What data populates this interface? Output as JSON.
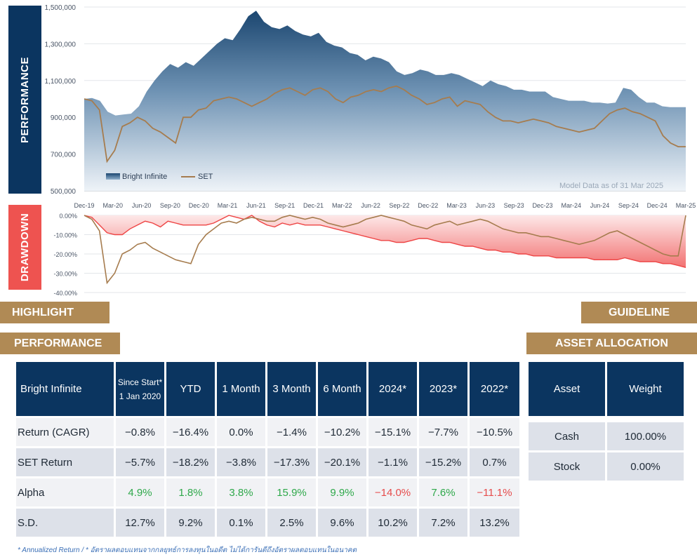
{
  "side_labels": {
    "performance": "PERFORMANCE",
    "drawdown": "DRAWDOWN"
  },
  "chart_data": [
    {
      "type": "area",
      "title": "",
      "y_ticks": [
        "1,500,000",
        "1,300,000",
        "1,100,000",
        "900,000",
        "700,000",
        "500,000"
      ],
      "ylim": [
        500000,
        1500000
      ],
      "x_ticks": [
        "Dec-19",
        "Mar-20",
        "Jun-20",
        "Sep-20",
        "Dec-20",
        "Mar-21",
        "Jun-21",
        "Sep-21",
        "Dec-21",
        "Mar-22",
        "Jun-22",
        "Sep-22",
        "Dec-22",
        "Mar-23",
        "Jun-23",
        "Sep-23",
        "Dec-23",
        "Mar-24",
        "Jun-24",
        "Sep-24",
        "Dec-24",
        "Mar-25"
      ],
      "legend": [
        "Bright Infinite",
        "SET"
      ],
      "annotation": "Model Data as of 31 Mar 2025",
      "series": [
        {
          "name": "Bright Infinite",
          "color": "#1b4670",
          "values": [
            1000000,
            1005000,
            990000,
            930000,
            910000,
            915000,
            920000,
            960000,
            1040000,
            1100000,
            1150000,
            1190000,
            1170000,
            1200000,
            1180000,
            1220000,
            1260000,
            1300000,
            1330000,
            1320000,
            1380000,
            1450000,
            1480000,
            1420000,
            1390000,
            1380000,
            1400000,
            1370000,
            1350000,
            1340000,
            1360000,
            1310000,
            1290000,
            1280000,
            1250000,
            1240000,
            1210000,
            1230000,
            1220000,
            1200000,
            1150000,
            1130000,
            1140000,
            1160000,
            1150000,
            1130000,
            1130000,
            1140000,
            1130000,
            1110000,
            1090000,
            1070000,
            1100000,
            1080000,
            1070000,
            1050000,
            1050000,
            1040000,
            1040000,
            1040000,
            1010000,
            1000000,
            990000,
            990000,
            990000,
            980000,
            980000,
            975000,
            980000,
            1060000,
            1050000,
            1010000,
            980000,
            980000,
            960000,
            955000,
            955000,
            955000
          ]
        },
        {
          "name": "SET",
          "color": "#a67c4e",
          "values": [
            1000000,
            990000,
            940000,
            660000,
            720000,
            850000,
            870000,
            900000,
            880000,
            840000,
            820000,
            790000,
            760000,
            900000,
            900000,
            940000,
            950000,
            990000,
            1000000,
            1010000,
            1000000,
            980000,
            960000,
            980000,
            1000000,
            1030000,
            1050000,
            1060000,
            1040000,
            1020000,
            1050000,
            1060000,
            1040000,
            1000000,
            980000,
            1010000,
            1020000,
            1040000,
            1050000,
            1040000,
            1060000,
            1070000,
            1050000,
            1020000,
            1000000,
            970000,
            980000,
            1000000,
            1010000,
            960000,
            990000,
            980000,
            970000,
            930000,
            900000,
            880000,
            880000,
            870000,
            880000,
            890000,
            880000,
            870000,
            850000,
            840000,
            830000,
            820000,
            830000,
            840000,
            880000,
            920000,
            940000,
            950000,
            930000,
            920000,
            900000,
            880000,
            800000,
            760000,
            740000,
            740000
          ]
        }
      ]
    },
    {
      "type": "area",
      "title": "",
      "y_ticks": [
        "0.00%",
        "-10.00%",
        "-20.00%",
        "-30.00%",
        "-40.00%"
      ],
      "ylim": [
        -40,
        0
      ],
      "series": [
        {
          "name": "Bright Infinite",
          "color": "#ee4444",
          "values": [
            0,
            -1,
            -5,
            -9,
            -10,
            -10,
            -7,
            -5,
            -3,
            -4,
            -6,
            -3,
            -4,
            -5,
            -5,
            -5,
            -5,
            -4,
            -2,
            0,
            -1,
            -2,
            0,
            -3,
            -5,
            -6,
            -4,
            -5,
            -4,
            -5,
            -5,
            -5,
            -6,
            -7,
            -8,
            -9,
            -10,
            -11,
            -12,
            -13,
            -13,
            -14,
            -14,
            -13,
            -12,
            -12,
            -13,
            -14,
            -14,
            -15,
            -16,
            -16,
            -17,
            -18,
            -18,
            -19,
            -19,
            -20,
            -20,
            -21,
            -21,
            -21,
            -22,
            -22,
            -22,
            -22,
            -22,
            -23,
            -23,
            -23,
            -23,
            -22,
            -23,
            -24,
            -24,
            -24,
            -25,
            -25,
            -26,
            -27
          ]
        },
        {
          "name": "SET",
          "color": "#a67c4e",
          "values": [
            0,
            -2,
            -8,
            -35,
            -30,
            -20,
            -18,
            -15,
            -14,
            -17,
            -19,
            -21,
            -23,
            -24,
            -25,
            -15,
            -10,
            -7,
            -4,
            -3,
            -4,
            -2,
            -1,
            -2,
            -3,
            -3,
            -1,
            0,
            -1,
            -2,
            -1,
            -2,
            -4,
            -5,
            -6,
            -5,
            -4,
            -2,
            -1,
            0,
            -1,
            -2,
            -3,
            -5,
            -6,
            -7,
            -5,
            -4,
            -3,
            -5,
            -4,
            -3,
            -2,
            -3,
            -5,
            -7,
            -8,
            -9,
            -9,
            -10,
            -11,
            -11,
            -12,
            -13,
            -14,
            -15,
            -14,
            -13,
            -11,
            -9,
            -8,
            -10,
            -12,
            -14,
            -16,
            -18,
            -20,
            -21,
            -21,
            0
          ]
        }
      ]
    }
  ],
  "tabs": {
    "highlight": "HIGHLIGHT",
    "guideline": "GUIDELINE",
    "performance": "PERFORMANCE",
    "asset_allocation": "ASSET ALLOCATION"
  },
  "performance_table": {
    "headers": [
      "Bright Infinite",
      "YTD",
      "1 Month",
      "3 Month",
      "6 Month",
      "2024*",
      "2023*",
      "2022*"
    ],
    "since_start": [
      "Since Start*",
      "1 Jan 2020"
    ],
    "rows": [
      {
        "label": "Return (CAGR)",
        "values": [
          "−0.8%",
          "−16.4%",
          "0.0%",
          "−1.4%",
          "−10.2%",
          "−15.1%",
          "−7.7%",
          "−10.5%"
        ]
      },
      {
        "label": "SET Return",
        "values": [
          "−5.7%",
          "−18.2%",
          "−3.8%",
          "−17.3%",
          "−20.1%",
          "−1.1%",
          "−15.2%",
          "0.7%"
        ]
      },
      {
        "label": "Alpha",
        "values": [
          "4.9%",
          "1.8%",
          "3.8%",
          "15.9%",
          "9.9%",
          "−14.0%",
          "7.6%",
          "−11.1%"
        ]
      },
      {
        "label": "S.D.",
        "values": [
          "12.7%",
          "9.2%",
          "0.1%",
          "2.5%",
          "9.6%",
          "10.2%",
          "7.2%",
          "13.2%"
        ]
      }
    ]
  },
  "allocation_table": {
    "headers": [
      "Asset",
      "Weight"
    ],
    "rows": [
      {
        "asset": "Cash",
        "weight": "100.00%"
      },
      {
        "asset": "Stock",
        "weight": "0.00%"
      }
    ]
  },
  "footnote": "* Annualized Return  /  * อัตราผลตอบแทนจากกลยุทธ์การลงทุนในอดีต ไม่ได้การันตีถึงอัตราผลตอบแทนในอนาคต",
  "colors": {
    "navy": "#0b3560",
    "gold": "#b08a55",
    "red": "#ee5350",
    "green": "#2ea84a",
    "neg_red": "#e64c4c"
  }
}
